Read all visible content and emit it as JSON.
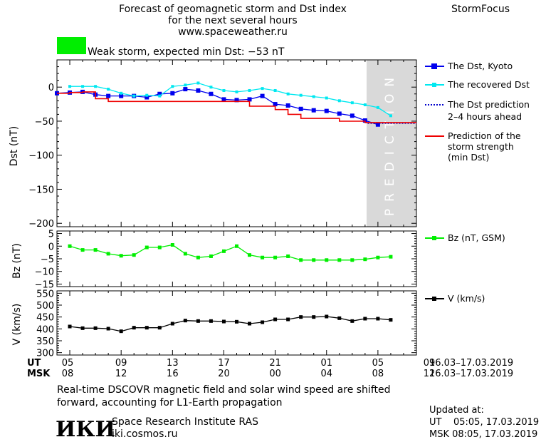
{
  "header": {
    "title_line1": "Forecast of geomagnetic storm and Dst index",
    "title_line2": "for the next several hours",
    "site": "www.spaceweather.ru",
    "brand": "StormFocus"
  },
  "storm_status": {
    "label": "Weak storm, expected min Dst: −53 nT",
    "color": "#00ee00"
  },
  "legend": {
    "dst_kyoto": "The Dst, Kyoto",
    "dst_recovered": "The recovered Dst",
    "dst_prediction_line1": "The Dst prediction",
    "dst_prediction_line2": "2–4 hours ahead",
    "strength_line1": "Prediction of the",
    "strength_line2": "storm strength",
    "strength_line3": "(min Dst)",
    "bz": "Bz (nT, GSM)",
    "v": "V (km/s)"
  },
  "prediction_label": "PREDICTION",
  "axes": {
    "dst_ylabel": "Dst (nT)",
    "bz_ylabel": "Bz (nT)",
    "v_ylabel": "V (km/s)",
    "ut_label": "UT",
    "msk_label": "MSK",
    "ut_ticks": [
      "05",
      "09",
      "13",
      "17",
      "21",
      "01",
      "05",
      "09"
    ],
    "msk_ticks": [
      "08",
      "12",
      "16",
      "20",
      "00",
      "04",
      "08",
      "12"
    ],
    "ut_range": "16.03–17.03.2019",
    "msk_range": "16.03–17.03.2019",
    "dst_yticks": [
      "0",
      "−50",
      "−100",
      "−150",
      "−200"
    ],
    "bz_yticks": [
      "5",
      "0",
      "−5",
      "−10",
      "−15"
    ],
    "v_yticks": [
      "550",
      "500",
      "450",
      "400",
      "350",
      "300"
    ]
  },
  "footer": {
    "note_line1": "Real-time DSCOVR magnetic field and solar wind speed are shifted",
    "note_line2": "forward, accounting for L1-Earth propagation",
    "logo_text": "ИКИ",
    "institute": "Space Research Institute RAS",
    "institute_site": "iki.cosmos.ru",
    "updated_label": "Updated at:",
    "updated_ut": "UT    05:05, 17.03.2019",
    "updated_msk": "MSK 08:05, 17.03.2019"
  },
  "colors": {
    "kyoto": "#0000ee",
    "recovered": "#00e8f0",
    "prediction_dots": "#0000cc",
    "strength": "#ee0000",
    "bz": "#00ee00",
    "v": "#000000",
    "prediction_band": "#d9d9d9"
  },
  "chart_data": [
    {
      "type": "line",
      "panel": "dst",
      "x_unit": "UT hours since 05:00 16.03.2019",
      "xlim": [
        0,
        28
      ],
      "ylim": [
        -205,
        40
      ],
      "series": [
        {
          "name": "The Dst, Kyoto",
          "x": [
            0,
            1,
            2,
            3,
            4,
            5,
            6,
            7,
            8,
            9,
            10,
            11,
            12,
            13,
            14,
            15,
            16,
            17,
            18,
            19,
            20,
            21,
            22,
            23,
            24,
            25
          ],
          "y": [
            -9,
            -8,
            -7,
            -11,
            -13,
            -13,
            -13,
            -15,
            -10,
            -9,
            -3,
            -5,
            -10,
            -18,
            -19,
            -18,
            -13,
            -25,
            -27,
            -32,
            -34,
            -35,
            -39,
            -42,
            -49,
            -55
          ]
        },
        {
          "name": "The recovered Dst",
          "x": [
            1,
            2,
            3,
            4,
            5,
            6,
            7,
            8,
            9,
            10,
            11,
            12,
            13,
            14,
            15,
            16,
            17,
            18,
            19,
            20,
            21,
            22,
            23,
            24,
            25,
            26
          ],
          "y": [
            1,
            1,
            1,
            -3,
            -9,
            -13,
            -12,
            -13,
            1,
            3,
            6,
            0,
            -5,
            -7,
            -5,
            -2,
            -5,
            -10,
            -12,
            -14,
            -16,
            -20,
            -23,
            -26,
            -30,
            -42
          ]
        },
        {
          "name": "The Dst prediction",
          "x": [
            24.2,
            28
          ],
          "y": [
            -53,
            -53
          ]
        },
        {
          "name": "Prediction of the storm strength",
          "x": [
            0,
            1,
            2,
            3,
            4,
            5,
            6,
            7,
            8,
            9,
            10,
            11,
            12,
            13,
            14,
            15,
            16,
            17,
            18,
            19,
            20,
            21,
            22,
            23,
            24,
            25,
            26,
            27,
            28
          ],
          "y": [
            -9,
            -8,
            -7,
            -17,
            -21,
            -21,
            -21,
            -21,
            -21,
            -21,
            -21,
            -21,
            -21,
            -21,
            -21,
            -28,
            -28,
            -33,
            -40,
            -46,
            -46,
            -46,
            -50,
            -50,
            -52,
            -52,
            -52,
            -52,
            -52
          ]
        }
      ],
      "prediction_region": [
        24,
        28
      ]
    },
    {
      "type": "line",
      "panel": "bz",
      "xlim": [
        0,
        28
      ],
      "ylim": [
        -16,
        6
      ],
      "series": [
        {
          "name": "Bz (nT, GSM)",
          "x": [
            1,
            2,
            3,
            4,
            5,
            6,
            7,
            8,
            9,
            10,
            11,
            12,
            13,
            14,
            15,
            16,
            17,
            18,
            19,
            20,
            21,
            22,
            23,
            24,
            25,
            26
          ],
          "y": [
            0,
            -1.5,
            -1.5,
            -3,
            -3.8,
            -3.5,
            -0.5,
            -0.5,
            0.5,
            -3,
            -4.5,
            -4,
            -2,
            0,
            -3.5,
            -4.5,
            -4.5,
            -4,
            -5.5,
            -5.5,
            -5.5,
            -5.5,
            -5.5,
            -5.2,
            -4.5,
            -4.2
          ]
        }
      ]
    },
    {
      "type": "line",
      "panel": "v",
      "xlim": [
        0,
        28
      ],
      "ylim": [
        290,
        560
      ],
      "series": [
        {
          "name": "V (km/s)",
          "x": [
            1,
            2,
            3,
            4,
            5,
            6,
            7,
            8,
            9,
            10,
            11,
            12,
            13,
            14,
            15,
            16,
            17,
            18,
            19,
            20,
            21,
            22,
            23,
            24,
            25,
            26
          ],
          "y": [
            410,
            403,
            403,
            401,
            390,
            405,
            405,
            405,
            422,
            435,
            433,
            433,
            431,
            430,
            422,
            428,
            440,
            440,
            450,
            450,
            452,
            445,
            433,
            443,
            443,
            438
          ]
        }
      ]
    }
  ]
}
